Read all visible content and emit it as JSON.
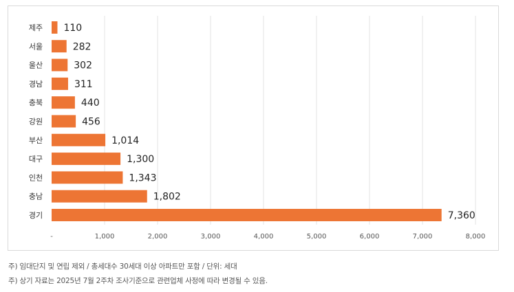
{
  "chart_data": {
    "type": "bar",
    "orientation": "horizontal",
    "title": "",
    "categories": [
      "제주",
      "서울",
      "울산",
      "경남",
      "충북",
      "강원",
      "부산",
      "대구",
      "인천",
      "충남",
      "경기"
    ],
    "values": [
      110,
      282,
      302,
      311,
      440,
      456,
      1014,
      1300,
      1343,
      1802,
      7360
    ],
    "value_labels": [
      "110",
      "282",
      "302",
      "311",
      "440",
      "456",
      "1,014",
      "1,300",
      "1,343",
      "1,802",
      "7,360"
    ],
    "xlim": [
      0,
      8000
    ],
    "xticks": [
      0,
      1000,
      2000,
      3000,
      4000,
      5000,
      6000,
      7000,
      8000
    ],
    "xtick_labels": [
      "-",
      "1,000",
      "2,000",
      "3,000",
      "4,000",
      "5,000",
      "6,000",
      "7,000",
      "8,000"
    ],
    "xlabel": "",
    "ylabel": "",
    "grid": "vertical",
    "legend": "none",
    "bar_color": "#ED7534",
    "grid_color": "#e3e3e3"
  },
  "notes": [
    "주) 임대단지 및 연립 제외 / 총세대수 30세대 이상 아파트만 포함 / 단위: 세대",
    "주) 상기 자료는 2025년 7월 2주차 조사기준으로 관련업체 사정에 따라 변경될 수 있음."
  ]
}
